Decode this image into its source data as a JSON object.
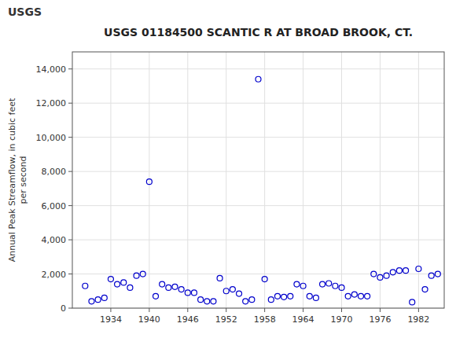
{
  "chart_data": {
    "type": "scatter",
    "title": "USGS 01184500 SCANTIC R AT BROAD BROOK, CT.",
    "annotations": [
      "USGS"
    ],
    "ylabel": "Annual Peak Streamflow, in cubic feet\nper second",
    "x": [
      1930,
      1931,
      1932,
      1933,
      1934,
      1935,
      1936,
      1937,
      1938,
      1939,
      1940,
      1941,
      1942,
      1943,
      1944,
      1945,
      1946,
      1947,
      1948,
      1949,
      1950,
      1951,
      1952,
      1953,
      1954,
      1955,
      1956,
      1957,
      1958,
      1959,
      1960,
      1961,
      1962,
      1963,
      1964,
      1965,
      1966,
      1967,
      1968,
      1969,
      1970,
      1971,
      1972,
      1973,
      1974,
      1975,
      1976,
      1977,
      1978,
      1979,
      1980,
      1981,
      1982,
      1983,
      1984,
      1985
    ],
    "values": [
      1300,
      400,
      500,
      600,
      1700,
      1400,
      1500,
      1200,
      1900,
      2000,
      7400,
      700,
      1400,
      1200,
      1250,
      1100,
      900,
      900,
      500,
      400,
      400,
      1750,
      1000,
      1100,
      850,
      400,
      500,
      13400,
      1700,
      500,
      700,
      650,
      700,
      1400,
      1300,
      700,
      600,
      1400,
      1450,
      1300,
      1200,
      700,
      800,
      700,
      700,
      2000,
      1800,
      1900,
      2100,
      2200,
      2200,
      350,
      2300,
      1100,
      1900,
      2000
    ],
    "color": "#0000cc",
    "marker": "circle-open",
    "xlim": [
      1928,
      1986
    ],
    "ylim": [
      0,
      15000
    ],
    "xticks": [
      1934,
      1940,
      1946,
      1952,
      1958,
      1964,
      1970,
      1976,
      1982
    ],
    "yticks": [
      0,
      {
        "value": 2000,
        "label": "2,000"
      },
      {
        "value": 4000,
        "label": "4,000"
      },
      {
        "value": 6000,
        "label": "6,000"
      },
      {
        "value": 8000,
        "label": "8,000"
      },
      {
        "value": 10000,
        "label": "10,000"
      },
      {
        "value": 12000,
        "label": "12,000"
      },
      {
        "value": 14000,
        "label": "14,000"
      }
    ],
    "grid": true
  }
}
